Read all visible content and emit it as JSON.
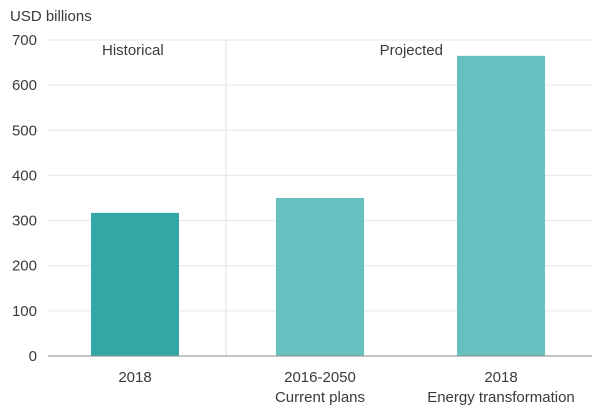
{
  "chart_data": {
    "type": "bar",
    "ylabel": "USD billions",
    "ylim": [
      0,
      700
    ],
    "yticks": [
      0,
      100,
      200,
      300,
      400,
      500,
      600,
      700
    ],
    "grid": true,
    "sections": [
      {
        "label": "Historical",
        "categories": [
          0
        ]
      },
      {
        "label": "Projected",
        "categories": [
          1,
          2
        ]
      }
    ],
    "categories": [
      [
        "2018"
      ],
      [
        "2016-2050",
        "Current plans"
      ],
      [
        "2018",
        "Energy transformation"
      ]
    ],
    "values": [
      317,
      350,
      665
    ],
    "colors": [
      "#33a6a6",
      "#66c0bf",
      "#66c0bf"
    ]
  }
}
